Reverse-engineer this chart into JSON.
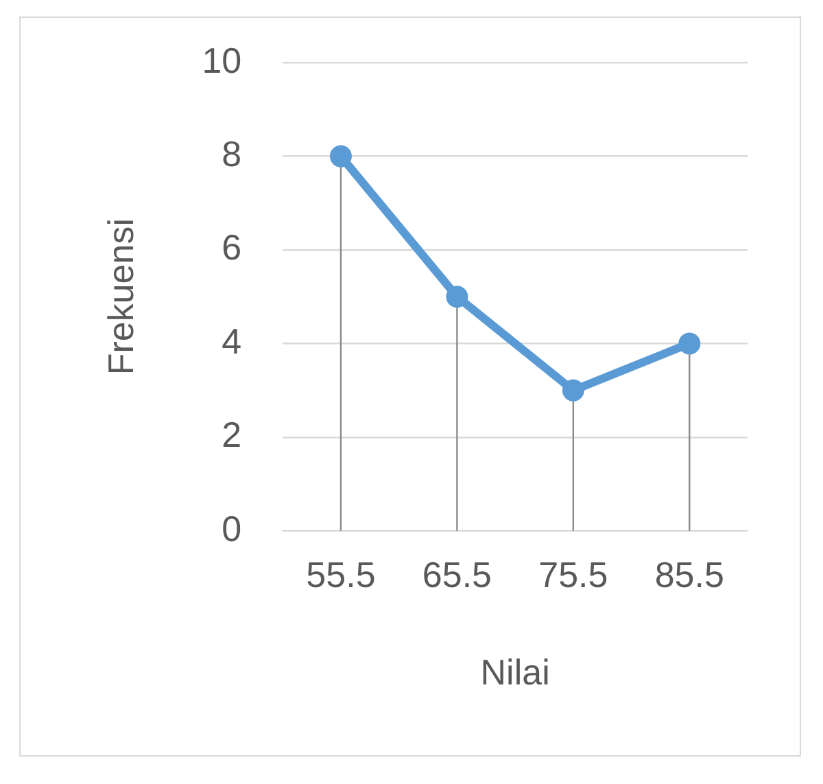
{
  "chart_data": {
    "type": "line",
    "xlabel": "Nilai",
    "ylabel": "Frekuensi",
    "categories": [
      "55.5",
      "65.5",
      "75.5",
      "85.5"
    ],
    "series": [
      {
        "color": "#5b9bd5",
        "values": [
          8,
          5,
          3,
          4
        ],
        "errors": [
          [
            0,
            8
          ],
          [
            0,
            5
          ],
          [
            0,
            3
          ],
          [
            0,
            4
          ]
        ]
      }
    ],
    "ylim": [
      0,
      10
    ],
    "yticks": [
      0,
      2,
      4,
      6,
      8,
      10
    ],
    "grid": "y",
    "legend": false,
    "marker": "circle"
  }
}
